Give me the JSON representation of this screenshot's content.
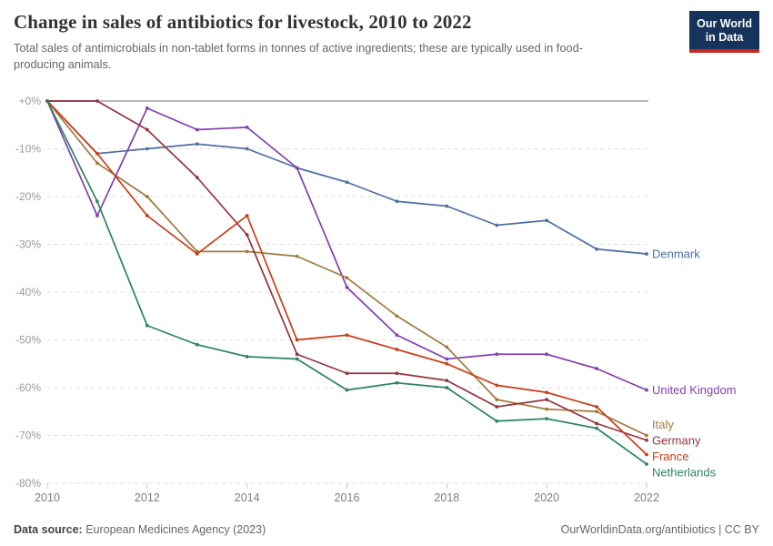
{
  "header": {
    "title": "Change in sales of antibiotics for livestock, 2010 to 2022",
    "subtitle": "Total sales of antimicrobials in non-tablet forms in tonnes of active ingredients; these are typically used in food-producing animals.",
    "logo": {
      "line1": "Our World",
      "line2": "in Data",
      "bg_color": "#16335B",
      "accent_color": "#C5281C"
    }
  },
  "footer": {
    "datasource_label": "Data source:",
    "datasource_value": " European Medicines Agency (2023)",
    "license": "OurWorldinData.org/antibiotics | CC BY"
  },
  "chart_data": {
    "type": "line",
    "title": "Change in sales of antibiotics for livestock, 2010 to 2022",
    "x": [
      2010,
      2011,
      2012,
      2013,
      2014,
      2015,
      2016,
      2017,
      2018,
      2019,
      2020,
      2021,
      2022
    ],
    "x_tick_labels": [
      2010,
      2012,
      2014,
      2016,
      2018,
      2020,
      2022
    ],
    "y_ticks": [
      0,
      -10,
      -20,
      -30,
      -40,
      -50,
      -60,
      -70,
      -80
    ],
    "y_unit": "%",
    "ylim": [
      -80,
      0
    ],
    "grid": "dashed horizontal, solid line at 0%",
    "legend_position": "end-of-line labels, right side",
    "series": [
      {
        "name": "Denmark",
        "color": "#4E6EA5",
        "values": [
          0,
          -11,
          -10,
          -9,
          -10,
          -14,
          -17,
          -21,
          -22,
          -26,
          -25,
          -31,
          -32
        ]
      },
      {
        "name": "United Kingdom",
        "color": "#8040B0",
        "values": [
          0,
          -24,
          -1.5,
          -6,
          -5.5,
          -14,
          -39,
          -49,
          -54,
          -53,
          -53,
          -56,
          -60.5
        ]
      },
      {
        "name": "Italy",
        "color": "#A17A3E",
        "values": [
          0,
          -13,
          -20,
          -31.5,
          -31.5,
          -32.5,
          -37,
          -45,
          -51.5,
          -62.5,
          -64.5,
          -65,
          -70
        ]
      },
      {
        "name": "Germany",
        "color": "#96343E",
        "values": [
          0,
          0,
          -6,
          -16,
          -28,
          -53,
          -57,
          -57,
          -58.5,
          -64,
          -62.5,
          -67.5,
          -71
        ]
      },
      {
        "name": "France",
        "color": "#C93D17",
        "values": [
          0,
          -11,
          -24,
          -32,
          -24,
          -50,
          -49,
          -52,
          -55,
          -59.5,
          -61,
          -64,
          -74
        ]
      },
      {
        "name": "Netherlands",
        "color": "#2C8465",
        "values": [
          0,
          -21,
          -47,
          -51,
          -53.5,
          -54,
          -60.5,
          -59,
          -60,
          -67,
          -66.5,
          -68.5,
          -76
        ]
      }
    ]
  }
}
